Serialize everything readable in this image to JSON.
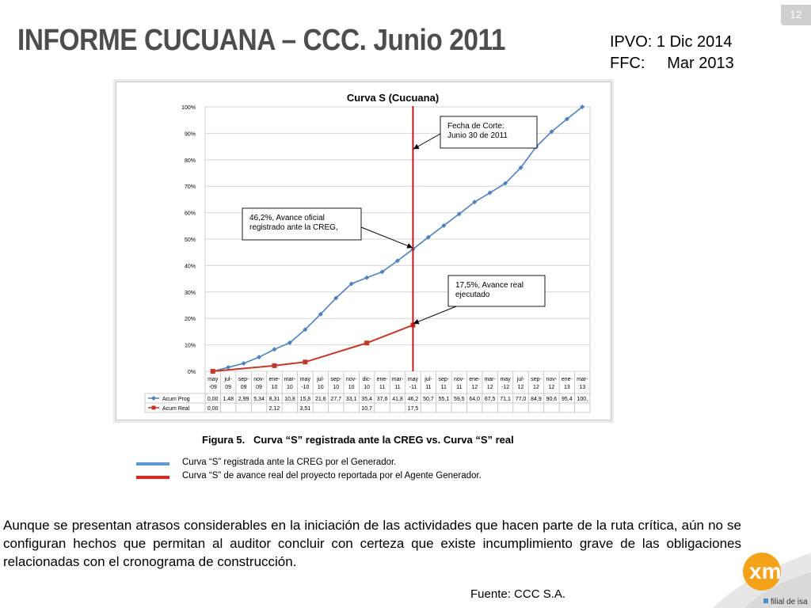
{
  "slide": {
    "page_number": "12",
    "title": "INFORME CUCUANA – CCC. Junio 2011",
    "dates": [
      {
        "label": "IPVO:",
        "value": "1 Dic 2014"
      },
      {
        "label": "FFC:",
        "value": "Mar 2013"
      }
    ],
    "figure_caption": "Figura 5.   Curva “S” registrada ante la CREG vs. Curva “S” real",
    "legend": [
      {
        "text": "Curva “S” registrada  ante la CREG por el Generador.",
        "color": "#5b9bd5"
      },
      {
        "text": "Curva “S” de avance real del proyecto reportada por el Agente Generador.",
        "color": "#e3201b"
      }
    ],
    "paragraph": "Aunque se presentan atrasos considerables en la iniciación de las actividades que hacen parte de la ruta crítica, aún no se configuran hechos que permitan al auditor concluir con certeza que existe incumplimiento grave de las obligaciones relacionadas con el cronograma de construcción.",
    "source": "Fuente: CCC S.A.",
    "logo_text": "xm",
    "logo_tagline": "filial de isa"
  },
  "chart_data": {
    "type": "line",
    "title": "Curva S (Cucuana)",
    "categories": [
      [
        "may",
        "-09"
      ],
      [
        "jul-",
        "09"
      ],
      [
        "sep-",
        "09"
      ],
      [
        "nov-",
        "09"
      ],
      [
        "ene-",
        "10"
      ],
      [
        "mar-",
        "10"
      ],
      [
        "may",
        "-10"
      ],
      [
        "jul-",
        "10"
      ],
      [
        "sep-",
        "10"
      ],
      [
        "nov-",
        "10"
      ],
      [
        "dic-",
        "10"
      ],
      [
        "ene-",
        "11"
      ],
      [
        "mar-",
        "11"
      ],
      [
        "may",
        "-11"
      ],
      [
        "jul-",
        "11"
      ],
      [
        "sep-",
        "11"
      ],
      [
        "nov-",
        "11"
      ],
      [
        "ene-",
        "12"
      ],
      [
        "mar-",
        "12"
      ],
      [
        "may",
        "-12"
      ],
      [
        "jul-",
        "12"
      ],
      [
        "sep-",
        "12"
      ],
      [
        "nov-",
        "12"
      ],
      [
        "ene-",
        "13"
      ],
      [
        "mar-",
        "13"
      ]
    ],
    "ylim": [
      0,
      100
    ],
    "yticks": [
      "0%",
      "10%",
      "20%",
      "30%",
      "40%",
      "50%",
      "60%",
      "70%",
      "80%",
      "90%",
      "100%"
    ],
    "grid": true,
    "series": [
      {
        "name": "Acum Prog",
        "color": "#4f81bd",
        "values": [
          0.0,
          1.48,
          2.99,
          5.34,
          8.31,
          10.8,
          15.8,
          21.6,
          27.7,
          33.1,
          35.4,
          37.6,
          41.8,
          46.2,
          50.7,
          55.1,
          59.5,
          64.0,
          67.5,
          71.1,
          77.0,
          84.9,
          90.6,
          95.4,
          100.0
        ],
        "table": [
          "0,00",
          "1,48",
          "2,99",
          "5,34",
          "8,31",
          "10,8",
          "15,8",
          "21,6",
          "27,7",
          "33,1",
          "35,4",
          "37,6",
          "41,8",
          "46,2",
          "50,7",
          "55,1",
          "59,5",
          "64,0",
          "67,5",
          "71,1",
          "77,0",
          "84,9",
          "90,6",
          "95,4",
          "100,"
        ]
      },
      {
        "name": "Acum Real",
        "color": "#c0392b",
        "values": [
          0.0,
          null,
          null,
          null,
          2.12,
          null,
          3.51,
          null,
          null,
          null,
          10.7,
          null,
          null,
          17.5,
          null,
          null,
          null,
          null,
          null,
          null,
          null,
          null,
          null,
          null,
          null
        ],
        "table": [
          "0,00",
          "",
          "",
          "",
          "2,12",
          "",
          "3,51",
          "",
          "",
          "",
          "10,7",
          "",
          "",
          "17,5",
          "",
          "",
          "",
          "",
          "",
          "",
          "",
          "",
          "",
          "",
          ""
        ]
      }
    ],
    "cutoff_category_index": 13,
    "annotations": [
      {
        "lines": [
          "Fecha de Corte:",
          "Junio 30 de 2011"
        ]
      },
      {
        "lines": [
          "46,2%,    Avance   oficial",
          "registrado ante la CREG,"
        ]
      },
      {
        "lines": [
          "17,5%,  Avance real",
          "ejecutado"
        ]
      }
    ]
  }
}
